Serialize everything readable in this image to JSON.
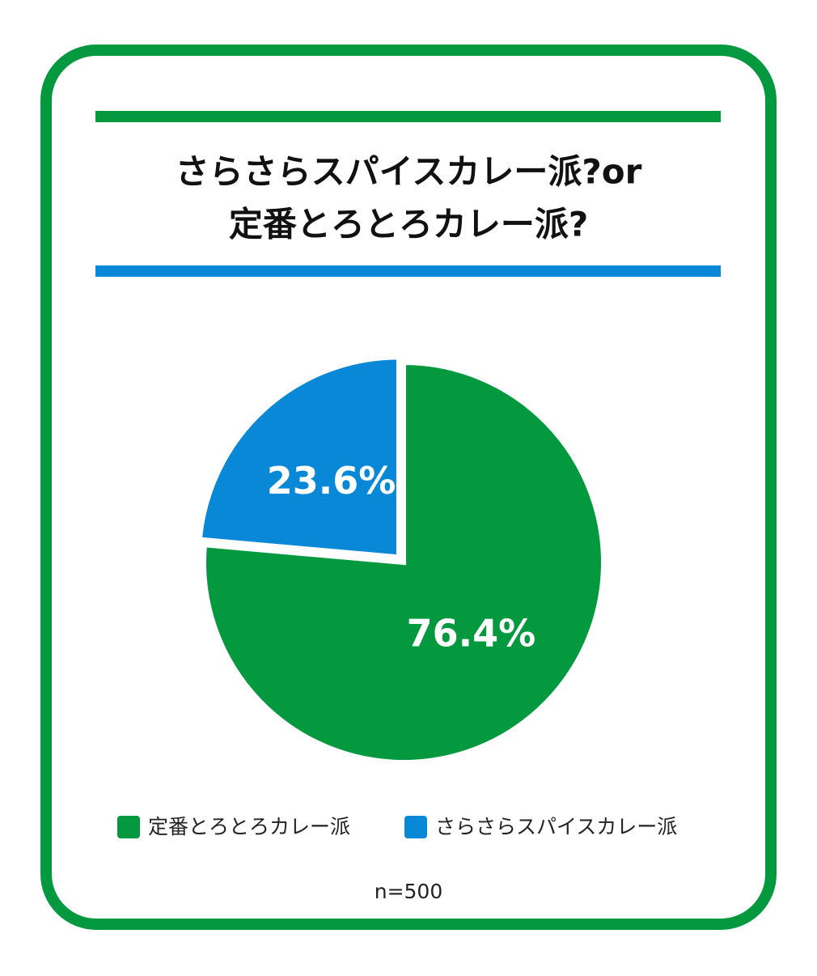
{
  "chart_data": {
    "type": "pie",
    "title": [
      "さらさらスパイスカレー派?or",
      "定番とろとろカレー派?"
    ],
    "categories": [
      "定番とろとろカレー派",
      "さらさらスパイスカレー派"
    ],
    "values": [
      76.4,
      23.6
    ],
    "value_labels": [
      "76.4%",
      "23.6%"
    ],
    "colors": [
      "#05993f",
      "#0a88d8"
    ],
    "note": "n=500"
  }
}
